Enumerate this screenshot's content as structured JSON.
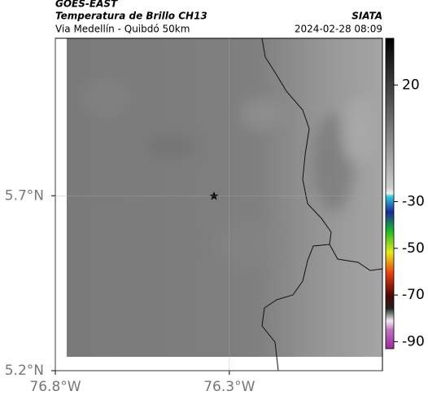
{
  "header": {
    "title": "GOES-EAST",
    "subtitle": "Temperatura de Brillo CH13",
    "source": "SIATA",
    "region": "Via Medellín - Quibdó 50km",
    "timestamp": "2024-02-28 08:09"
  },
  "map": {
    "xlim": [
      -76.8,
      -75.86
    ],
    "ylim": [
      5.2,
      6.15
    ],
    "xticks": [
      {
        "value": -76.8,
        "label": "76.8°W"
      },
      {
        "value": -76.3,
        "label": "76.3°W"
      }
    ],
    "yticks": [
      {
        "value": 5.2,
        "label": "5.2°N"
      },
      {
        "value": 5.7,
        "label": "5.7°N"
      }
    ],
    "grid": true
  },
  "colorbar": {
    "lim": [
      -93,
      40
    ],
    "ticks": [
      20,
      -30,
      -50,
      -70,
      -90
    ]
  }
}
